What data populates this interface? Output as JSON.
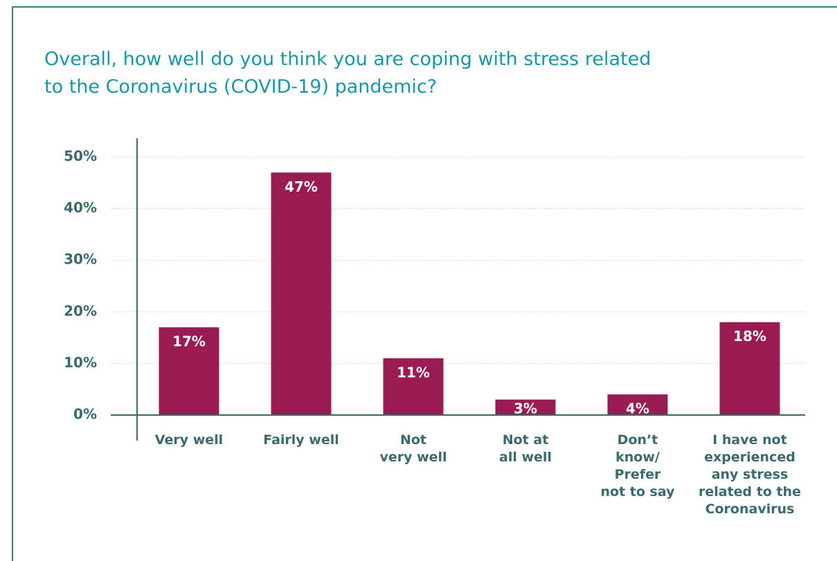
{
  "chart_data": {
    "type": "bar",
    "title": "Overall, how well do you think you are coping with stress related\nto the Coronavirus (COVID-19) pandemic?",
    "categories": [
      "Very well",
      "Fairly well",
      "Not\nvery well",
      "Not at\nall well",
      "Don’t\nknow/\nPrefer\nnot to say",
      "I have not\nexperienced\nany stress\nrelated to the\nCoronavirus"
    ],
    "values": [
      17,
      47,
      11,
      3,
      4,
      18
    ],
    "value_labels": [
      "17%",
      "47%",
      "11%",
      "3%",
      "4%",
      "18%"
    ],
    "color": "#9a1b51",
    "ylim": [
      0,
      50
    ],
    "yticks": [
      {
        "value": 0,
        "label": "0%"
      },
      {
        "value": 10,
        "label": "10%"
      },
      {
        "value": 20,
        "label": "20%"
      },
      {
        "value": 30,
        "label": "30%"
      },
      {
        "value": 40,
        "label": "40%"
      },
      {
        "value": 50,
        "label": "50%"
      }
    ],
    "grid": true
  }
}
